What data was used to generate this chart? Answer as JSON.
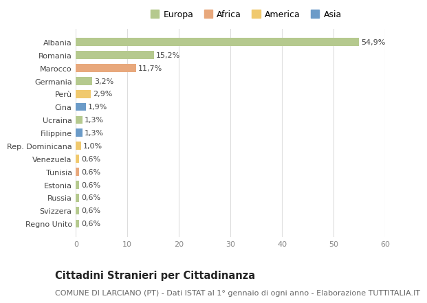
{
  "categories": [
    "Albania",
    "Romania",
    "Marocco",
    "Germania",
    "Perù",
    "Cina",
    "Ucraina",
    "Filippine",
    "Rep. Dominicana",
    "Venezuela",
    "Tunisia",
    "Estonia",
    "Russia",
    "Svizzera",
    "Regno Unito"
  ],
  "values": [
    54.9,
    15.2,
    11.7,
    3.2,
    2.9,
    1.9,
    1.3,
    1.3,
    1.0,
    0.6,
    0.6,
    0.6,
    0.6,
    0.6,
    0.6
  ],
  "labels": [
    "54,9%",
    "15,2%",
    "11,7%",
    "3,2%",
    "2,9%",
    "1,9%",
    "1,3%",
    "1,3%",
    "1,0%",
    "0,6%",
    "0,6%",
    "0,6%",
    "0,6%",
    "0,6%",
    "0,6%"
  ],
  "colors": [
    "#b5c98e",
    "#b5c98e",
    "#e8a87c",
    "#b5c98e",
    "#f0c96e",
    "#6b9bc8",
    "#b5c98e",
    "#6b9bc8",
    "#f0c96e",
    "#f0c96e",
    "#e8a87c",
    "#b5c98e",
    "#b5c98e",
    "#b5c98e",
    "#b5c98e"
  ],
  "legend_labels": [
    "Europa",
    "Africa",
    "America",
    "Asia"
  ],
  "legend_colors": [
    "#b5c98e",
    "#e8a87c",
    "#f0c96e",
    "#6b9bc8"
  ],
  "xlim": [
    0,
    60
  ],
  "xticks": [
    0,
    10,
    20,
    30,
    40,
    50,
    60
  ],
  "title": "Cittadini Stranieri per Cittadinanza",
  "subtitle": "COMUNE DI LARCIANO (PT) - Dati ISTAT al 1° gennaio di ogni anno - Elaborazione TUTTITALIA.IT",
  "bg_color": "#ffffff",
  "grid_color": "#dddddd",
  "bar_height": 0.62,
  "title_fontsize": 10.5,
  "subtitle_fontsize": 8,
  "label_fontsize": 8,
  "tick_fontsize": 8,
  "legend_fontsize": 9
}
